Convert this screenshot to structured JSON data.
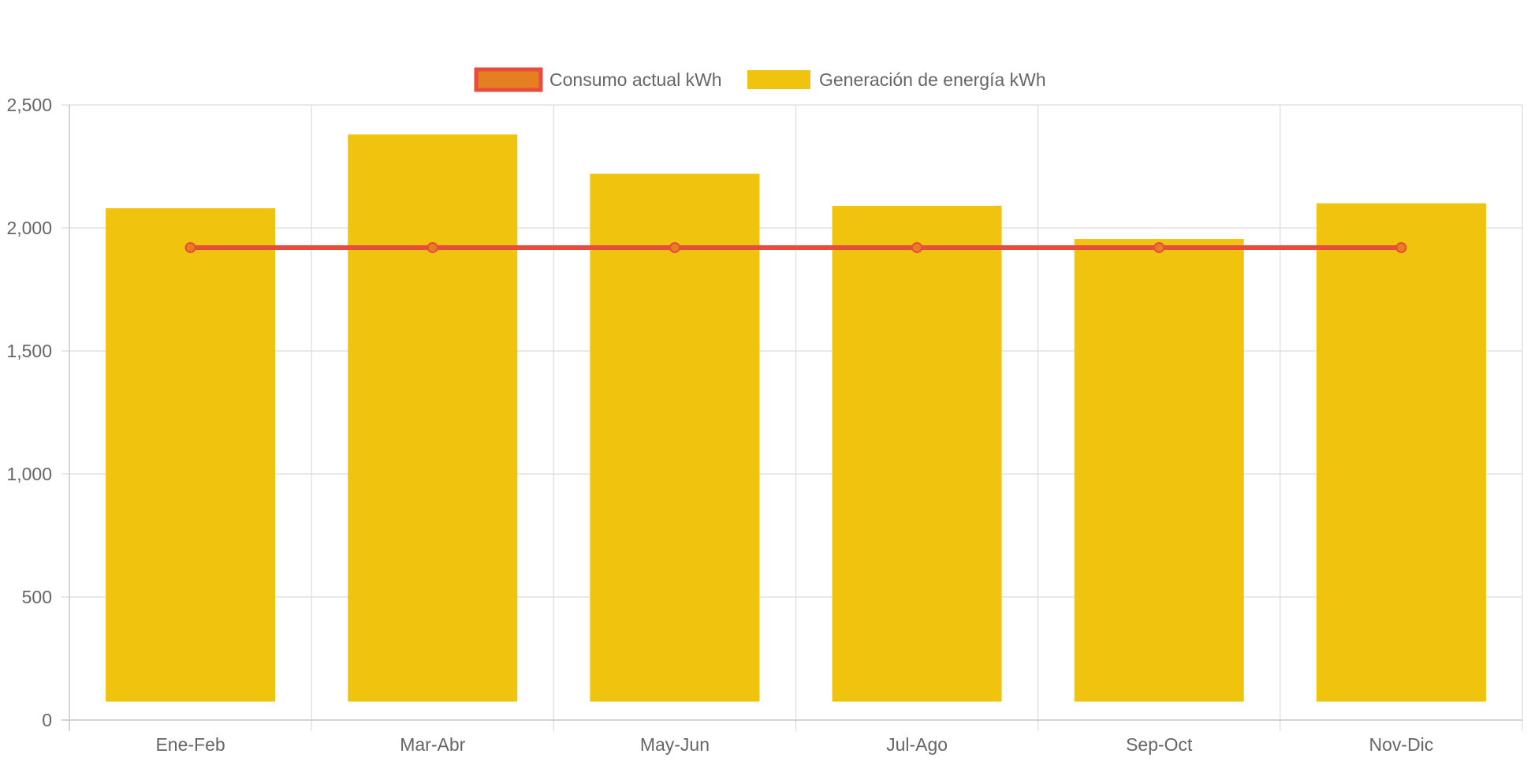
{
  "chart_data": {
    "type": "bar",
    "categories": [
      "Ene-Feb",
      "Mar-Abr",
      "May-Jun",
      "Jul-Ago",
      "Sep-Oct",
      "Nov-Dic"
    ],
    "series": [
      {
        "name": "Generación de energía kWh",
        "type": "bar",
        "color": "#f0c30f",
        "values": [
          2005,
          2305,
          2145,
          2015,
          1880,
          2025
        ],
        "base": 75
      },
      {
        "name": "Consumo actual kWh",
        "type": "line",
        "color": "#e74c3c",
        "point_fill": "#e67e22",
        "values": [
          1920,
          1920,
          1920,
          1920,
          1920,
          1920
        ]
      }
    ],
    "ylim": [
      0,
      2500
    ],
    "yticks": [
      0,
      500,
      1000,
      1500,
      2000,
      2500
    ],
    "ytick_labels": [
      "0",
      "500",
      "1,000",
      "1,500",
      "2,000",
      "2,500"
    ],
    "title": "",
    "xlabel": "",
    "ylabel": "",
    "grid": true,
    "legend": {
      "position": "top-center",
      "entries": [
        "Consumo actual kWh",
        "Generación de energía kWh"
      ]
    }
  }
}
